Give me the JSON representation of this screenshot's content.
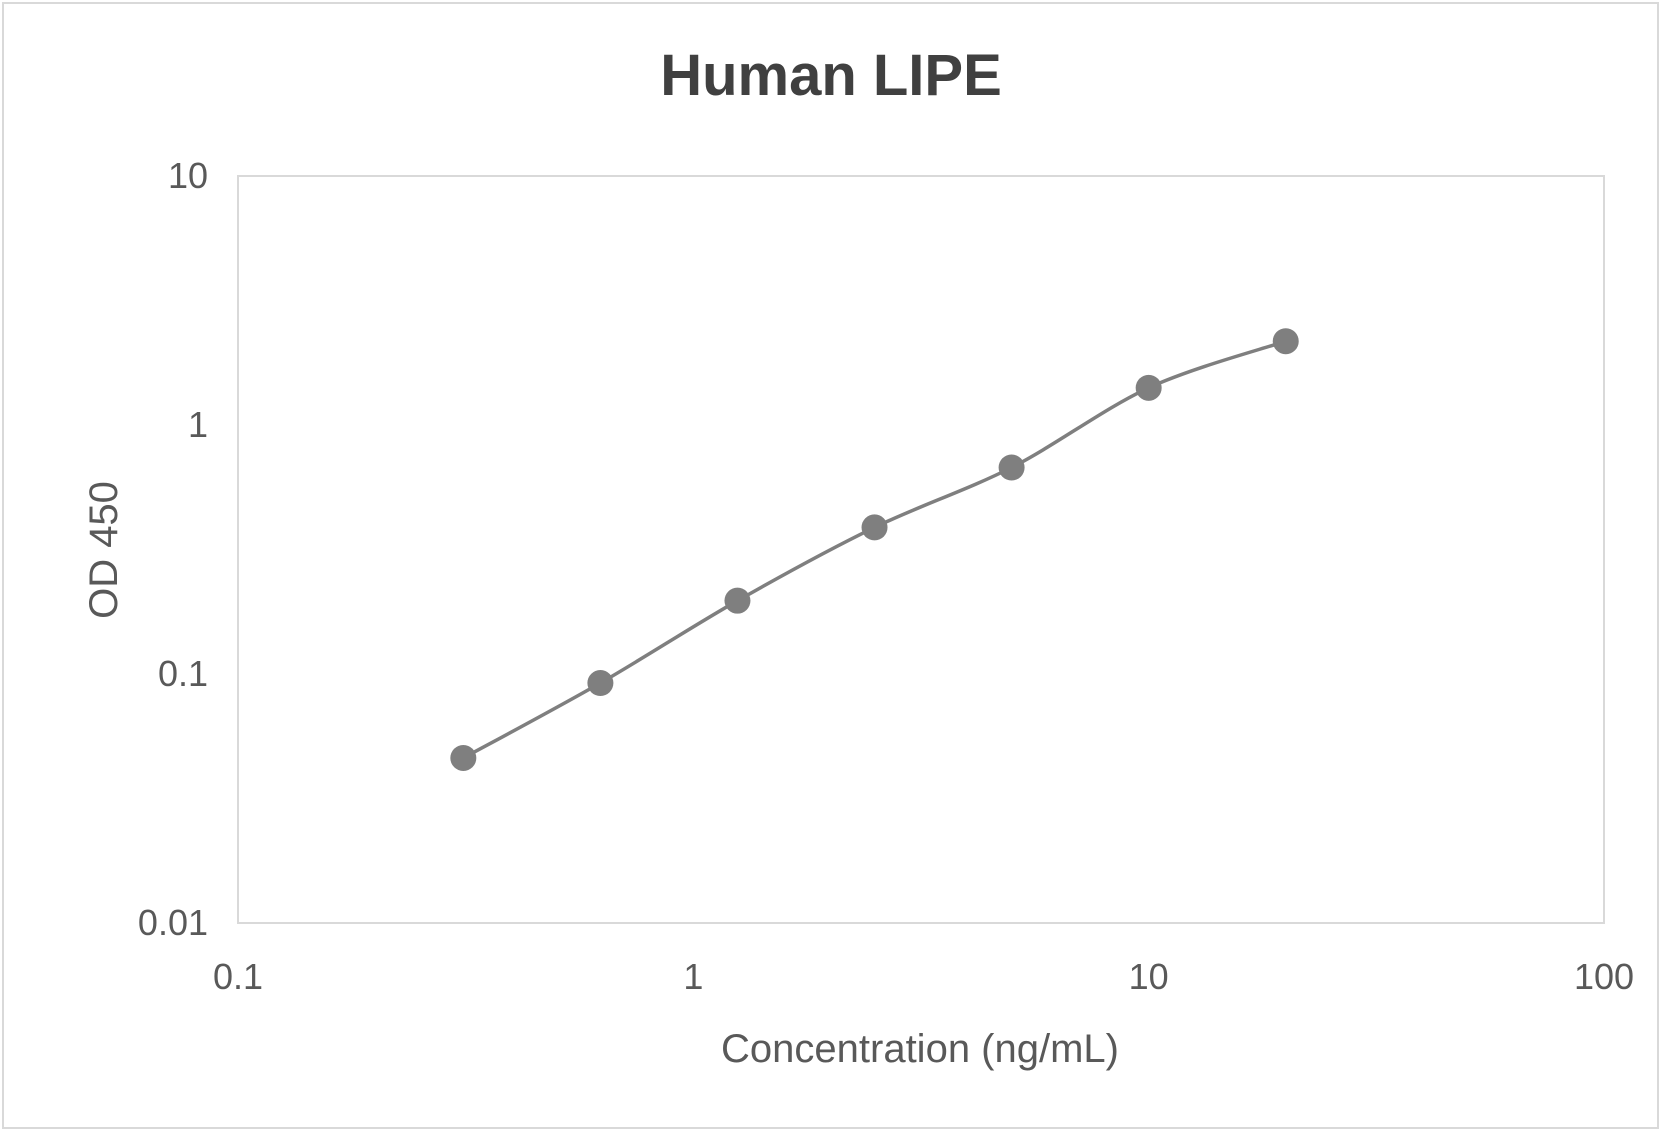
{
  "chart_data": {
    "type": "scatter",
    "title": "Human LIPE",
    "xlabel": "Concentration (ng/mL)",
    "ylabel": "OD 450",
    "x_scale": "log",
    "y_scale": "log",
    "xlim": [
      0.1,
      100
    ],
    "ylim": [
      0.01,
      10
    ],
    "x_ticks": [
      "0.1",
      "1",
      "10",
      "100"
    ],
    "y_ticks": [
      "0.01",
      "0.1",
      "1",
      "10"
    ],
    "grid": false,
    "legend": "none",
    "line": "smoothed",
    "series": [
      {
        "x": [
          0.3125,
          0.625,
          1.25,
          2.5,
          5,
          10,
          20
        ],
        "y": [
          0.046,
          0.092,
          0.197,
          0.388,
          0.675,
          1.41,
          2.17
        ]
      }
    ],
    "colors": {
      "series": "#7f7f7f",
      "text": "#595959",
      "title": "#404040",
      "plot_border": "#d9d9d9"
    }
  }
}
